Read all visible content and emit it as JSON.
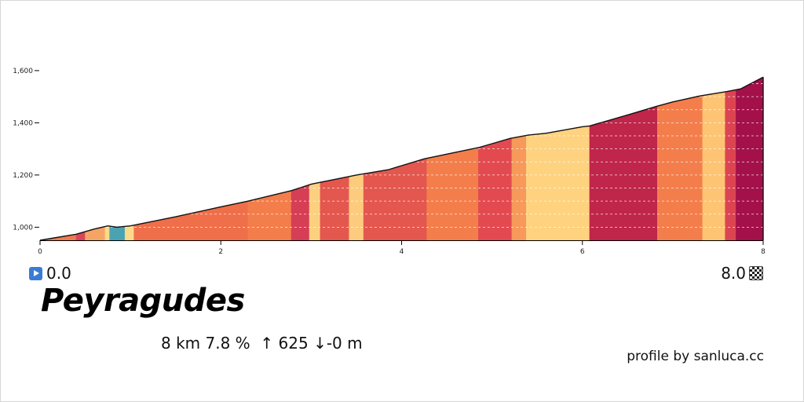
{
  "title": "Peyragudes",
  "stats": {
    "distance": "8 km",
    "gradient": "7.8 %",
    "ascent": "↑ 625",
    "descent": "↓-0 m"
  },
  "start_label": "0.0",
  "end_label": "8.0",
  "credit": "profile by sanluca.cc",
  "icons": {
    "start": "play-icon",
    "finish": "checkered-flag-icon"
  },
  "chart_data": {
    "type": "area",
    "xlabel": "",
    "ylabel": "",
    "xlim": [
      0,
      8
    ],
    "ylim": [
      950,
      1690
    ],
    "x_ticks": [
      0,
      2,
      4,
      6,
      8
    ],
    "y_ticks": [
      1000,
      1200,
      1400,
      1600
    ],
    "y_tick_labels": [
      "1,000",
      "1,200",
      "1,400",
      "1,600"
    ],
    "grid": "horizontal dashed every 100 m",
    "profile": [
      [
        0,
        950
      ],
      [
        0.4,
        973
      ],
      [
        0.6,
        993
      ],
      [
        0.75,
        1005
      ],
      [
        0.85,
        1000
      ],
      [
        1.0,
        1005
      ],
      [
        1.5,
        1040
      ],
      [
        2.0,
        1078
      ],
      [
        2.3,
        1100
      ],
      [
        2.78,
        1140
      ],
      [
        3.0,
        1165
      ],
      [
        3.1,
        1172
      ],
      [
        3.5,
        1200
      ],
      [
        3.85,
        1220
      ],
      [
        4.25,
        1262
      ],
      [
        4.85,
        1305
      ],
      [
        5.2,
        1340
      ],
      [
        5.4,
        1353
      ],
      [
        5.6,
        1360
      ],
      [
        6.0,
        1385
      ],
      [
        6.08,
        1388
      ],
      [
        6.5,
        1430
      ],
      [
        6.82,
        1463
      ],
      [
        7.0,
        1480
      ],
      [
        7.3,
        1503
      ],
      [
        7.6,
        1520
      ],
      [
        7.75,
        1530
      ],
      [
        8.0,
        1575
      ]
    ],
    "segments": [
      {
        "from": 0.0,
        "to": 0.4,
        "color": "#f07a50"
      },
      {
        "from": 0.4,
        "to": 0.5,
        "color": "#d9455a"
      },
      {
        "from": 0.5,
        "to": 0.72,
        "color": "#f6a464"
      },
      {
        "from": 0.72,
        "to": 0.77,
        "color": "#fdd98a"
      },
      {
        "from": 0.77,
        "to": 0.94,
        "color": "#4aa3b3"
      },
      {
        "from": 0.94,
        "to": 1.04,
        "color": "#fdd98a"
      },
      {
        "from": 1.04,
        "to": 2.3,
        "color": "#ef6f4a"
      },
      {
        "from": 2.3,
        "to": 2.78,
        "color": "#f37e4b"
      },
      {
        "from": 2.78,
        "to": 2.98,
        "color": "#d63e55"
      },
      {
        "from": 2.98,
        "to": 3.1,
        "color": "#fdd080"
      },
      {
        "from": 3.1,
        "to": 3.42,
        "color": "#e4574e"
      },
      {
        "from": 3.42,
        "to": 3.58,
        "color": "#fdcb7d"
      },
      {
        "from": 3.58,
        "to": 4.28,
        "color": "#e4574e"
      },
      {
        "from": 4.28,
        "to": 4.85,
        "color": "#f37e4b"
      },
      {
        "from": 4.85,
        "to": 5.22,
        "color": "#e24a50"
      },
      {
        "from": 5.22,
        "to": 5.38,
        "color": "#f6995a"
      },
      {
        "from": 5.38,
        "to": 6.08,
        "color": "#fed27f"
      },
      {
        "from": 6.08,
        "to": 6.83,
        "color": "#c0264a"
      },
      {
        "from": 6.83,
        "to": 7.33,
        "color": "#f37e4b"
      },
      {
        "from": 7.33,
        "to": 7.58,
        "color": "#fdc474"
      },
      {
        "from": 7.58,
        "to": 7.7,
        "color": "#dc4452"
      },
      {
        "from": 7.7,
        "to": 8.0,
        "color": "#a3104a"
      }
    ]
  }
}
